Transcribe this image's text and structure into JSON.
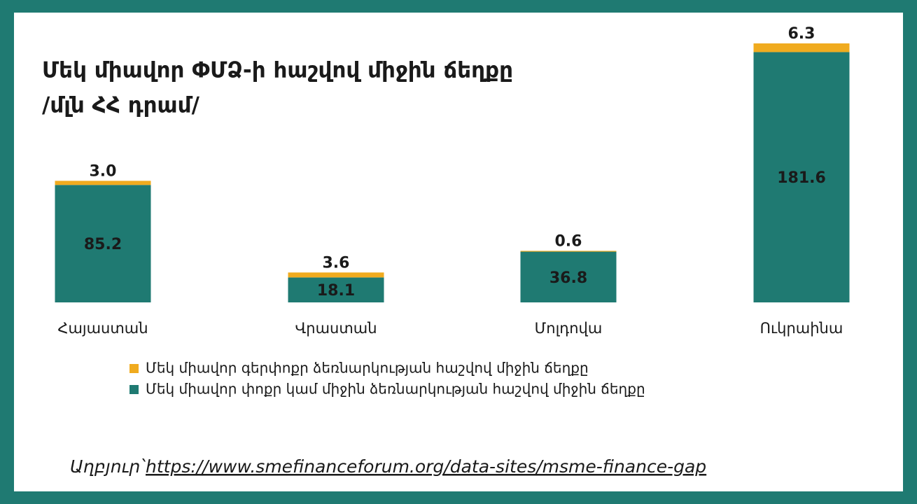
{
  "chart_data": {
    "type": "stacked_bar",
    "title": "Մեկ միավոր ՓՄՁ-ի հաշվով միջին ճեղքը",
    "subtitle": "/մլն ՀՀ դրամ/",
    "categories": [
      "Հայաստան",
      "Վրաստան",
      "Մոլդովա",
      "Ուկրաինա"
    ],
    "series": [
      {
        "name": "Մեկ միավոր փոքր կամ միջին ձեռնարկության հաշվով միջին ճեղքը",
        "color": "#1f7a72",
        "values": [
          85.2,
          18.1,
          36.8,
          181.6
        ]
      },
      {
        "name": "Մեկ միավոր գերփոքր ձեռնարկության հաշվով միջին ճեղքը",
        "color": "#f0ab1f",
        "values": [
          3,
          3.6,
          0.6,
          6.3
        ],
        "value_labels": [
          "3.0",
          "3.6",
          "0.6",
          "6.3"
        ]
      }
    ],
    "source_label": "Աղբյուր՝",
    "source_url": "https://www.smefinanceforum.org/data-sites/msme-finance-gap"
  }
}
